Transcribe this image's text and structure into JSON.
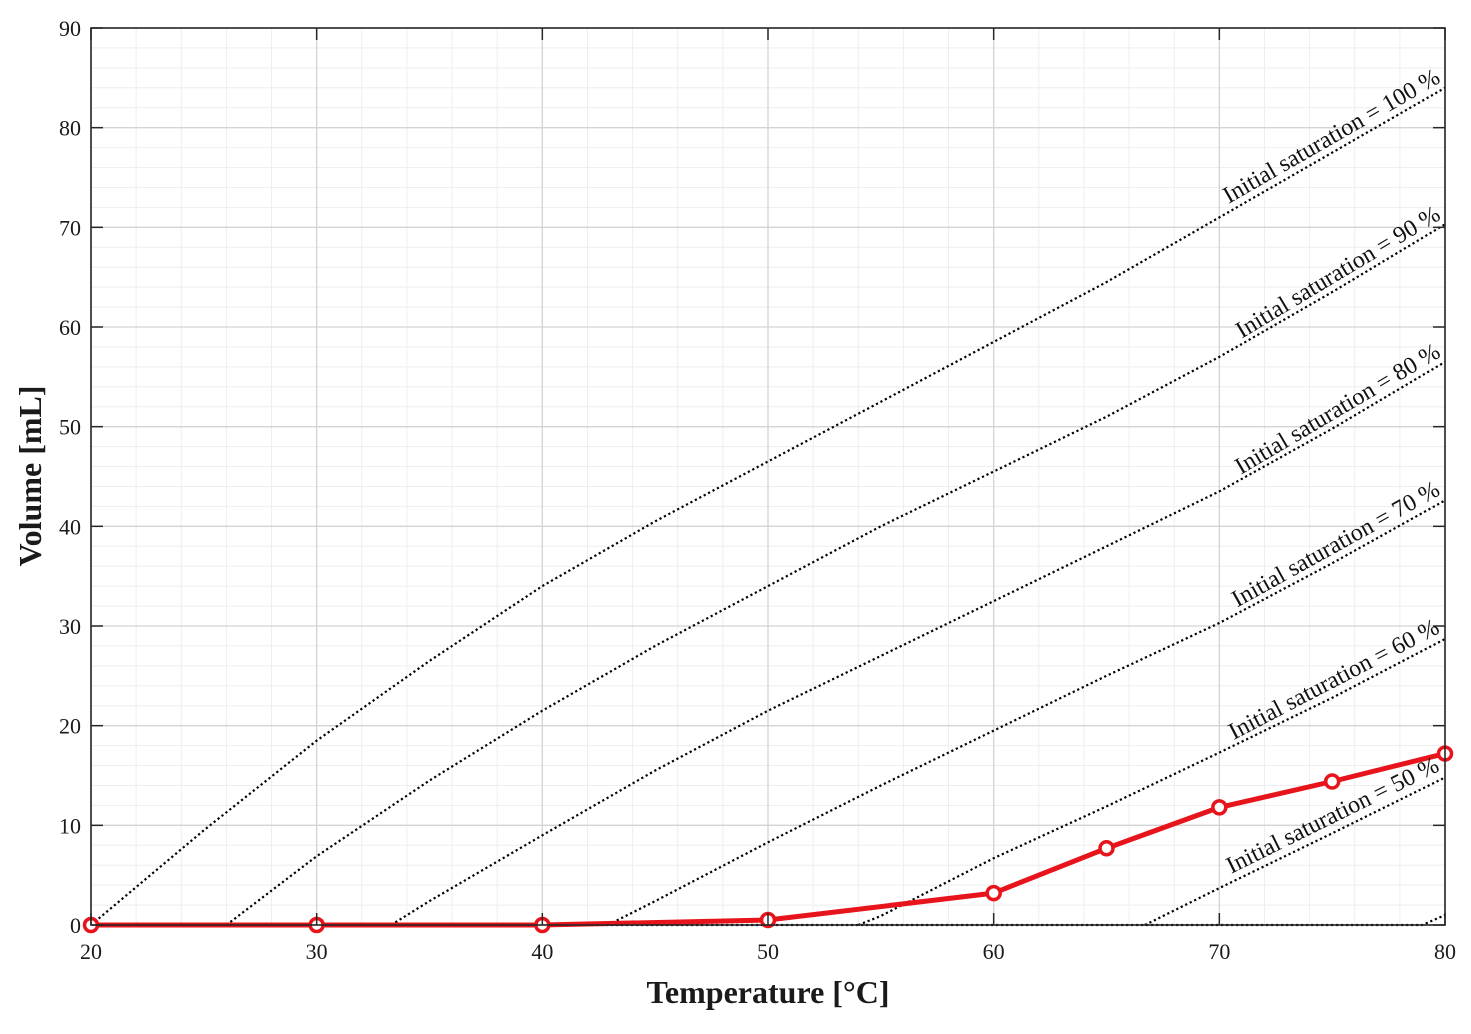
{
  "chart_data": {
    "type": "line",
    "xlabel": "Temperature [°C]",
    "ylabel": "Volume [mL]",
    "xlim": [
      20,
      80
    ],
    "ylim": [
      0,
      90
    ],
    "xticks": [
      20,
      30,
      40,
      50,
      60,
      70,
      80
    ],
    "yticks": [
      0,
      10,
      20,
      30,
      40,
      50,
      60,
      70,
      80,
      90
    ],
    "grid": true,
    "minor_grid": true,
    "series": [
      {
        "x": [
          20,
          30,
          40,
          50,
          60,
          65,
          70,
          75,
          80
        ],
        "values": [
          0,
          0,
          0,
          0.5,
          3.2,
          7.7,
          11.8,
          14.4,
          17.2
        ],
        "color": "#e8141c",
        "style": "solid",
        "markers": "circle"
      }
    ],
    "reference_curves": [
      {
        "label": "Initial saturation = 100 %",
        "x": [
          20,
          25,
          30,
          35,
          40,
          45,
          50,
          55,
          60,
          65,
          70,
          75,
          80
        ],
        "values": [
          0,
          9.5,
          18.5,
          26.5,
          34,
          40.5,
          46.5,
          52.5,
          58.5,
          64.5,
          71,
          77.5,
          84
        ],
        "style": "dotted",
        "color": "#000000"
      },
      {
        "label": "Initial saturation = 90 %",
        "x": [
          26,
          30,
          35,
          40,
          45,
          50,
          55,
          60,
          65,
          70,
          75,
          80
        ],
        "values": [
          0,
          6.9,
          14.5,
          21.5,
          28,
          34,
          40,
          45.5,
          51,
          57,
          63.5,
          70.3
        ],
        "style": "dotted",
        "color": "#000000"
      },
      {
        "label": "Initial saturation = 80 %",
        "x": [
          33.3,
          35,
          40,
          45,
          50,
          55,
          60,
          65,
          70,
          75,
          80
        ],
        "values": [
          0,
          2.4,
          9,
          15.5,
          21.5,
          27,
          32.5,
          38,
          43.5,
          49.8,
          56.5
        ],
        "style": "dotted",
        "color": "#000000"
      },
      {
        "label": "Initial saturation = 70 %",
        "x": [
          42.9,
          45,
          50,
          55,
          60,
          65,
          70,
          75,
          80
        ],
        "values": [
          0,
          2.4,
          8.3,
          14,
          19.5,
          25,
          30.3,
          36.3,
          42.6
        ],
        "style": "dotted",
        "color": "#000000"
      },
      {
        "label": "Initial saturation = 60 %",
        "x": [
          54,
          55,
          60,
          65,
          70,
          75,
          80
        ],
        "values": [
          0,
          0.9,
          6.7,
          11.9,
          17.3,
          22.8,
          28.7
        ],
        "style": "dotted",
        "color": "#000000"
      },
      {
        "label": "Initial saturation = 50 %",
        "x": [
          66.7,
          70,
          75,
          80
        ],
        "values": [
          0,
          3.7,
          9.2,
          14.8
        ],
        "style": "dotted",
        "color": "#000000"
      },
      {
        "label": "",
        "x": [
          20,
          79,
          80
        ],
        "values": [
          0,
          0,
          1
        ],
        "style": "dotted",
        "color": "#000000"
      }
    ]
  }
}
